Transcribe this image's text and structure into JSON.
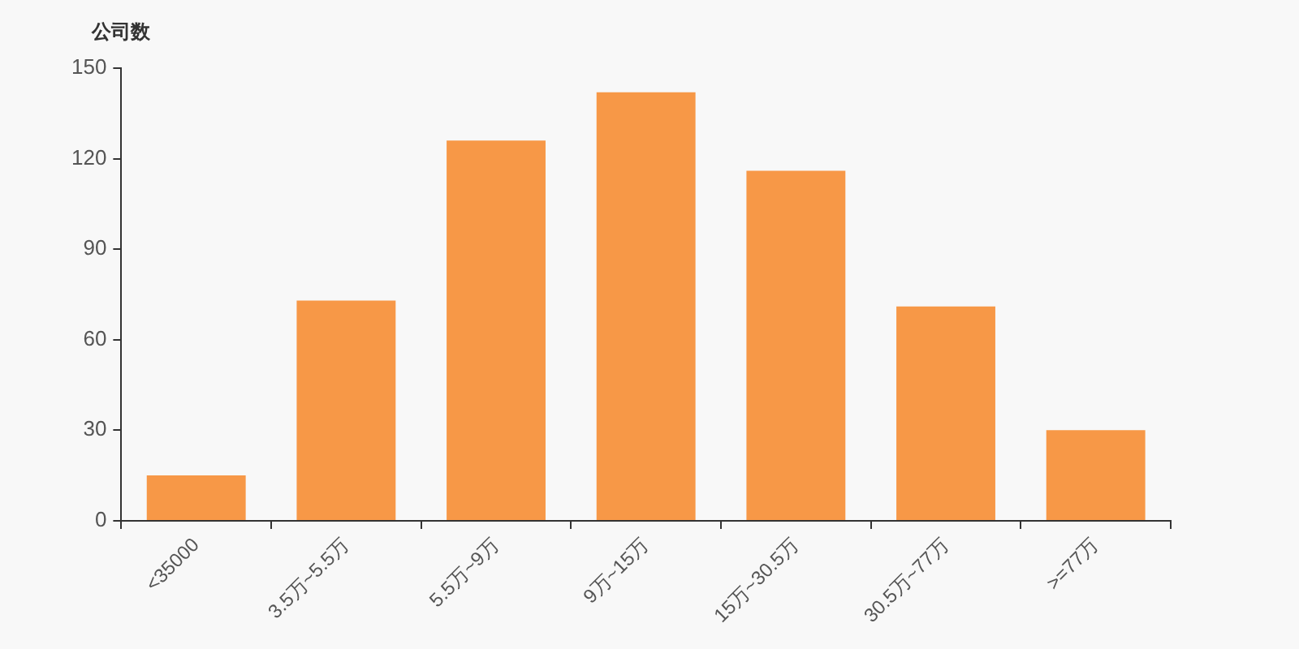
{
  "chart_data": {
    "type": "bar",
    "ylabel": "公司数",
    "categories": [
      "<35000",
      "3.5万~5.5万",
      "5.5万~9万",
      "9万~15万",
      "15万~30.5万",
      "30.5万~77万",
      ">=77万"
    ],
    "values": [
      15,
      73,
      126,
      142,
      116,
      71,
      30
    ],
    "color": "#f79847",
    "ylim": [
      0,
      150
    ],
    "yticks": [
      0,
      30,
      60,
      90,
      120,
      150
    ],
    "grid": false,
    "legend": false
  }
}
